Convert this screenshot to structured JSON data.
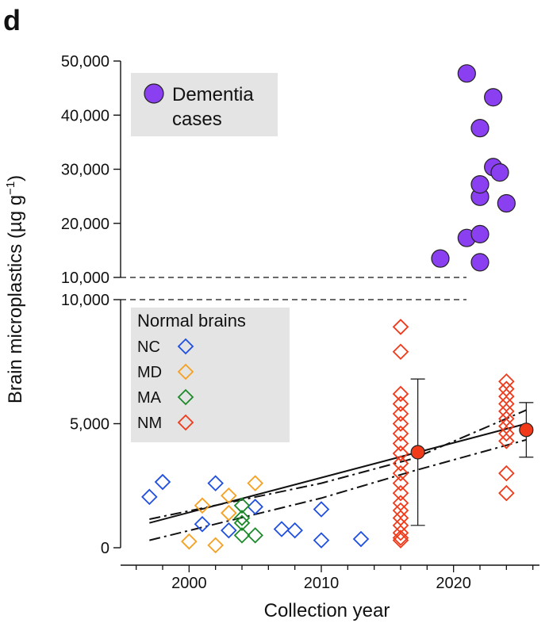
{
  "panel_label": "d",
  "chart_data": {
    "type": "scatter",
    "xlabel": "Collection year",
    "ylabel_main": "Brain microplastics (µg g",
    "ylabel_sup": "−1",
    "ylabel_close": ")",
    "x_range": [
      1995,
      2026.5
    ],
    "x_ticks": [
      2000,
      2010,
      2020
    ],
    "x_tick_labels": [
      "2000",
      "2010",
      "2020"
    ],
    "upper_panel": {
      "y_range": [
        10000,
        50000
      ],
      "y_ticks": [
        10000,
        20000,
        30000,
        40000,
        50000
      ],
      "y_tick_labels": [
        "10,000",
        "20,000",
        "30,000",
        "40,000",
        "50,000"
      ],
      "legend": {
        "label_line1": "Dementia",
        "label_line2": "cases",
        "color": "#8a3ff0"
      },
      "series": [
        {
          "name": "Dementia cases",
          "color": "#8a3ff0",
          "points": [
            [
              2019,
              13500
            ],
            [
              2021,
              17300
            ],
            [
              2021,
              47700
            ],
            [
              2022,
              12800
            ],
            [
              2022,
              18000
            ],
            [
              2022,
              24900
            ],
            [
              2022,
              27200
            ],
            [
              2022,
              37600
            ],
            [
              2023,
              30400
            ],
            [
              2023,
              43300
            ],
            [
              2023.5,
              29400
            ],
            [
              2024,
              23700
            ]
          ]
        }
      ]
    },
    "lower_panel": {
      "y_range": [
        0,
        10000
      ],
      "y_ticks": [
        0,
        5000,
        10000
      ],
      "y_tick_labels": [
        "0",
        "5,000",
        "10,000"
      ],
      "legend_title": "Normal brains",
      "series": [
        {
          "name": "NC",
          "color": "#1f4fe0",
          "points": [
            [
              1997,
              2050
            ],
            [
              1998,
              2650
            ],
            [
              2001,
              950
            ],
            [
              2002,
              2600
            ],
            [
              2003,
              700
            ],
            [
              2005,
              1650
            ],
            [
              2007,
              750
            ],
            [
              2008,
              700
            ],
            [
              2010,
              1550
            ],
            [
              2010,
              300
            ],
            [
              2013,
              350
            ]
          ]
        },
        {
          "name": "MD",
          "color": "#f5a020",
          "points": [
            [
              2000,
              250
            ],
            [
              2001,
              1700
            ],
            [
              2002,
              100
            ],
            [
              2003,
              1400
            ],
            [
              2003,
              2100
            ],
            [
              2005,
              2600
            ]
          ]
        },
        {
          "name": "MA",
          "color": "#1d8a2a",
          "points": [
            [
              2004,
              500
            ],
            [
              2004,
              1000
            ],
            [
              2004,
              1200
            ],
            [
              2004,
              1700
            ],
            [
              2005,
              500
            ]
          ]
        },
        {
          "name": "NM",
          "color": "#f03a1a",
          "points": [
            [
              2016,
              8900
            ],
            [
              2016,
              7900
            ],
            [
              2016,
              6200
            ],
            [
              2016,
              5800
            ],
            [
              2016,
              5400
            ],
            [
              2016,
              5000
            ],
            [
              2016,
              4600
            ],
            [
              2016,
              4200
            ],
            [
              2016,
              3800
            ],
            [
              2016,
              3400
            ],
            [
              2016,
              3000
            ],
            [
              2016,
              2600
            ],
            [
              2016,
              2200
            ],
            [
              2016,
              1800
            ],
            [
              2016,
              1500
            ],
            [
              2016,
              1200
            ],
            [
              2016,
              900
            ],
            [
              2016,
              600
            ],
            [
              2016,
              400
            ],
            [
              2016,
              300
            ],
            [
              2024,
              6700
            ],
            [
              2024,
              6400
            ],
            [
              2024,
              6100
            ],
            [
              2024,
              5800
            ],
            [
              2024,
              5500
            ],
            [
              2024,
              5200
            ],
            [
              2024,
              4900
            ],
            [
              2024,
              4600
            ],
            [
              2024,
              4300
            ],
            [
              2024,
              3000
            ],
            [
              2024,
              2200
            ]
          ]
        }
      ],
      "group_means": [
        {
          "x": 2017.3,
          "y": 3850,
          "err_low": 900,
          "err_high": 6800,
          "color": "#f03a1a"
        },
        {
          "x": 2025.5,
          "y": 4750,
          "err_low": 3650,
          "err_high": 5850,
          "color": "#f03a1a"
        }
      ],
      "trend": {
        "fit": [
          [
            1997,
            1000
          ],
          [
            2025.5,
            5000
          ]
        ],
        "ci_upper": [
          [
            1997,
            1150
          ],
          [
            2010,
            2600
          ],
          [
            2017,
            3600
          ],
          [
            2025.5,
            5550
          ]
        ],
        "ci_lower": [
          [
            1997,
            300
          ],
          [
            2010,
            2000
          ],
          [
            2017,
            3100
          ],
          [
            2025.5,
            4350
          ]
        ]
      }
    }
  }
}
